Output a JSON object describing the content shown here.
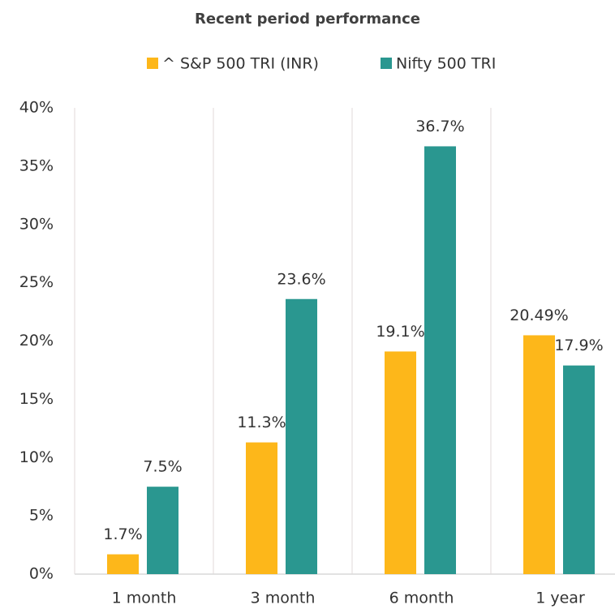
{
  "chart_data": {
    "type": "bar",
    "title": "Recent period performance",
    "categories": [
      "1 month",
      "3 month",
      "6 month",
      "1 year"
    ],
    "series": [
      {
        "name": "^ S&P 500 TRI (INR)",
        "color": "#fdb71a",
        "values": [
          1.7,
          11.3,
          19.1,
          20.49
        ],
        "value_labels": [
          "1.7%",
          "11.3%",
          "19.1%",
          "20.49%"
        ]
      },
      {
        "name": "Nifty 500 TRI",
        "color": "#2a9790",
        "values": [
          7.5,
          23.6,
          36.7,
          17.9
        ],
        "value_labels": [
          "7.5%",
          "23.6%",
          "36.7%",
          "17.9%"
        ]
      }
    ],
    "ylim": [
      0,
      40
    ],
    "yticks": [
      {
        "value": 0,
        "label": "0%"
      },
      {
        "value": 5,
        "label": "5%"
      },
      {
        "value": 10,
        "label": "10%"
      },
      {
        "value": 15,
        "label": "15%"
      },
      {
        "value": 20,
        "label": "20%"
      },
      {
        "value": 25,
        "label": "25%"
      },
      {
        "value": 30,
        "label": "30%"
      },
      {
        "value": 35,
        "label": "35%"
      },
      {
        "value": 40,
        "label": "40%"
      }
    ],
    "legend": "top"
  }
}
